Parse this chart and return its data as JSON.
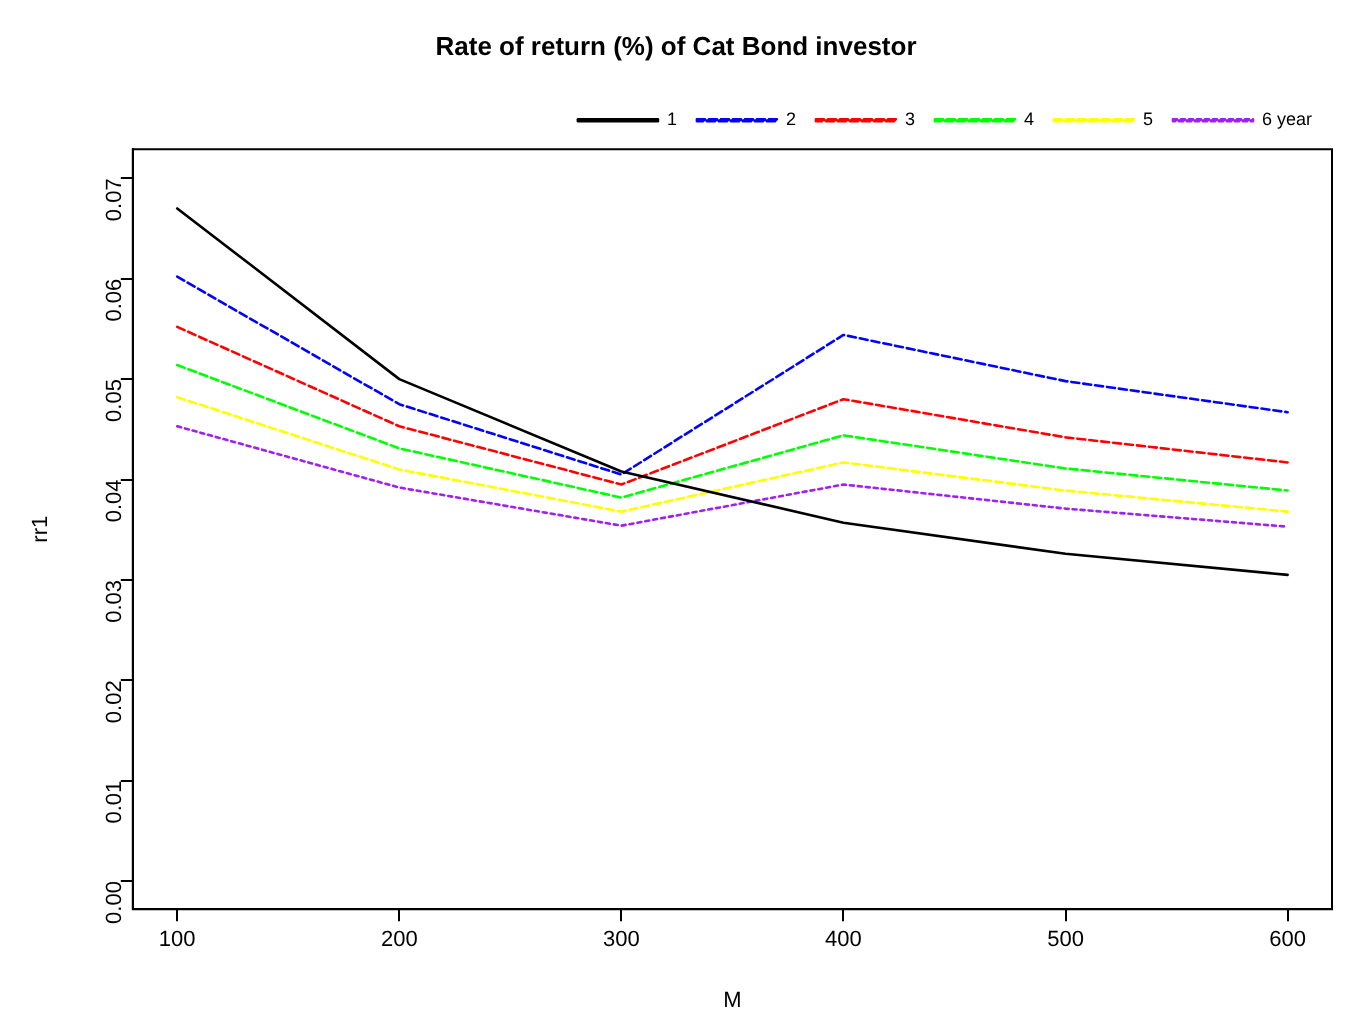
{
  "chart_data": {
    "type": "line",
    "title": "Rate of return (%) of Cat Bond investor",
    "xlabel": "M",
    "ylabel": "rr1",
    "x": [
      100,
      200,
      300,
      400,
      500,
      600
    ],
    "series": [
      {
        "name": "1",
        "color": "#000000",
        "line_style": "solid",
        "values": [
          0.067,
          0.05,
          0.0408,
          0.0357,
          0.0326,
          0.0305
        ]
      },
      {
        "name": "2",
        "color": "#0000ff",
        "line_style": "dashed",
        "values": [
          0.0602,
          0.0475,
          0.0405,
          0.0544,
          0.0498,
          0.0467
        ]
      },
      {
        "name": "3",
        "color": "#ff0000",
        "line_style": "dashed",
        "values": [
          0.0552,
          0.0453,
          0.0395,
          0.048,
          0.0442,
          0.0417
        ]
      },
      {
        "name": "4",
        "color": "#00ff00",
        "line_style": "dashed",
        "values": [
          0.0514,
          0.0431,
          0.0382,
          0.0444,
          0.0411,
          0.0389
        ]
      },
      {
        "name": "5",
        "color": "#ffff00",
        "line_style": "dashed",
        "values": [
          0.0482,
          0.041,
          0.0368,
          0.0417,
          0.0389,
          0.0368
        ]
      },
      {
        "name": "6 year",
        "color": "#a020f0",
        "line_style": "dotted",
        "values": [
          0.0453,
          0.0392,
          0.0354,
          0.0395,
          0.0371,
          0.0353
        ]
      }
    ],
    "xlim": [
      80,
      620
    ],
    "xticks": [
      100,
      200,
      300,
      400,
      500,
      600
    ],
    "ylim": [
      -0.0028,
      0.0729
    ],
    "yticks": [
      {
        "value": 0,
        "label": "0.00"
      },
      {
        "value": 0.01,
        "label": "0.01"
      },
      {
        "value": 0.02,
        "label": "0.02"
      },
      {
        "value": 0.03,
        "label": "0.03"
      },
      {
        "value": 0.04,
        "label": "0.04"
      },
      {
        "value": 0.05,
        "label": "0.05"
      },
      {
        "value": 0.06,
        "label": "0.06"
      },
      {
        "value": 0.07,
        "label": "0.07"
      }
    ],
    "grid": false,
    "legend": "top right",
    "marker": "none"
  }
}
